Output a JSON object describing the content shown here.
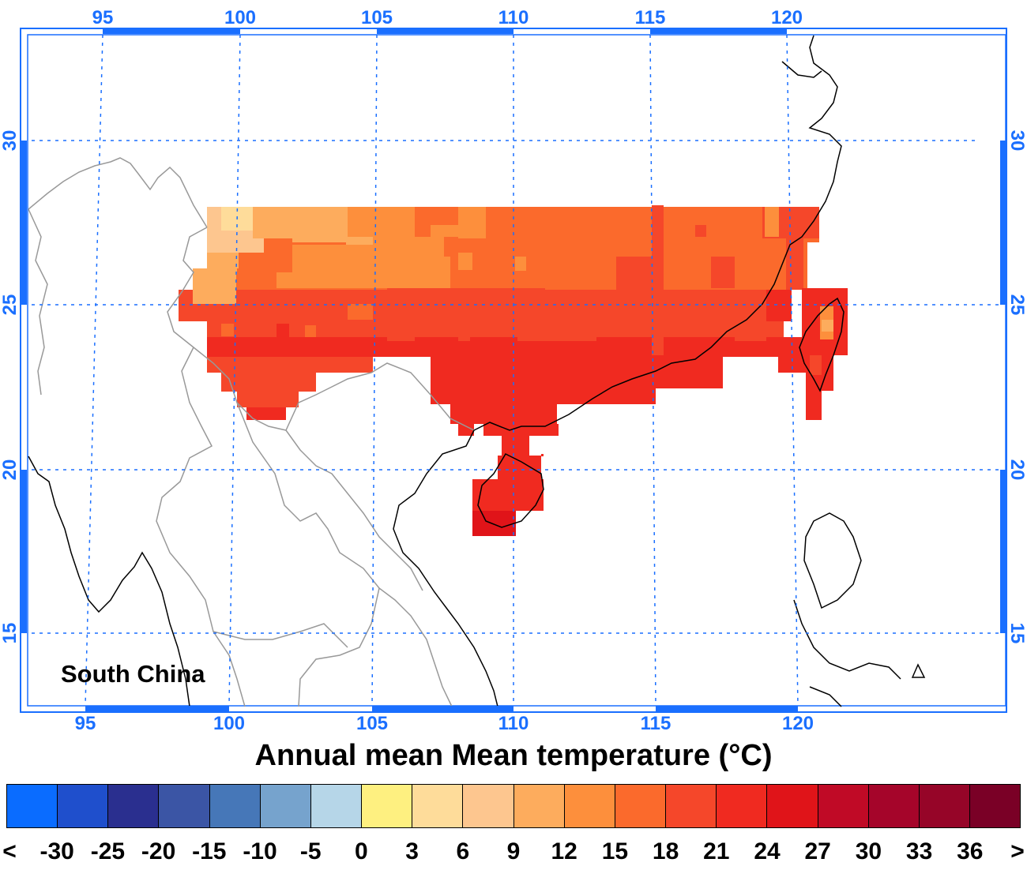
{
  "map": {
    "region_label": "South China",
    "lon_ticks_top": [
      "95",
      "100",
      "105",
      "110",
      "115",
      "120"
    ],
    "lon_ticks_bottom": [
      "95",
      "100",
      "105",
      "110",
      "115",
      "120"
    ],
    "lat_ticks_left": [
      "30",
      "25",
      "20",
      "15"
    ],
    "lat_ticks_right": [
      "30",
      "25",
      "20",
      "15"
    ],
    "tick_color": "#1a6fff",
    "gridline_color": "#1a6fff",
    "coastline_color": "#000000",
    "border_color": "#999999"
  },
  "title": "Annual mean Mean temperature (°C)",
  "colorbar": {
    "colors": [
      "#0a6cff",
      "#1f4fcc",
      "#2a2f8f",
      "#3b55a5",
      "#4677b8",
      "#76a3cd",
      "#b6d6e8",
      "#fef080",
      "#fedc9a",
      "#fdc68f",
      "#fdac5d",
      "#fd8f3c",
      "#fb6a2c",
      "#f5472a",
      "#f02a20",
      "#e01419",
      "#c00a26",
      "#a5052a",
      "#960528",
      "#7a0026"
    ],
    "labels": [
      "<",
      "-30",
      "-25",
      "-20",
      "-15",
      "-10",
      "-5",
      "0",
      "3",
      "6",
      "9",
      "12",
      "15",
      "18",
      "21",
      "24",
      "27",
      "30",
      "33",
      "36",
      ">"
    ]
  },
  "field": {
    "description_units": "°C",
    "approx_value_range": [
      6,
      27
    ]
  }
}
